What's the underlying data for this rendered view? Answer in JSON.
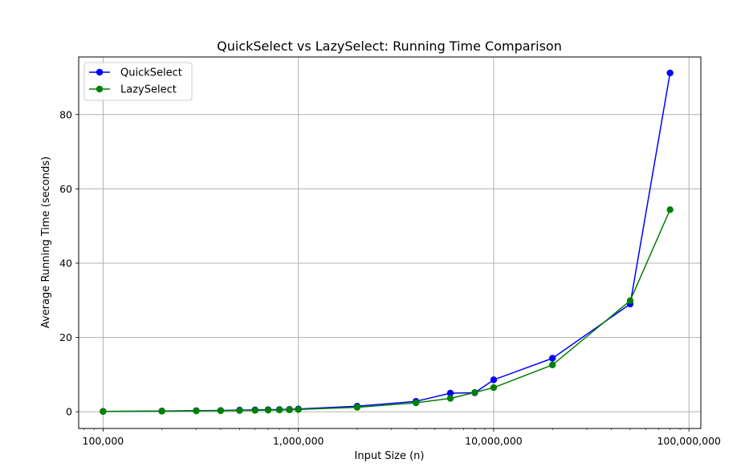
{
  "chart_data": {
    "type": "line",
    "title": "QuickSelect vs LazySelect: Running Time Comparison",
    "xlabel": "Input Size (n)",
    "ylabel": "Average Running Time (seconds)",
    "x_scale": "log",
    "xlim": [
      75000,
      115000000
    ],
    "ylim": [
      -4.5,
      95.5
    ],
    "x_ticks": [
      100000,
      1000000,
      10000000,
      100000000
    ],
    "x_tick_labels": [
      "100,000",
      "1,000,000",
      "10,000,000",
      "100,000,000"
    ],
    "y_ticks": [
      0,
      20,
      40,
      60,
      80
    ],
    "y_tick_labels": [
      "0",
      "20",
      "40",
      "60",
      "80"
    ],
    "grid": true,
    "legend_position": "top-left",
    "x": [
      100000,
      200000,
      300000,
      400000,
      500000,
      600000,
      700000,
      800000,
      900000,
      1000000,
      2000000,
      4000000,
      6000000,
      8000000,
      10000000,
      20000000,
      50000000,
      80000000
    ],
    "series": [
      {
        "name": "QuickSelect",
        "color": "#0000ff",
        "values": [
          0.1,
          0.2,
          0.3,
          0.35,
          0.45,
          0.5,
          0.55,
          0.6,
          0.65,
          0.75,
          1.5,
          2.8,
          5.0,
          5.1,
          8.6,
          14.4,
          29.0,
          91.2
        ]
      },
      {
        "name": "LazySelect",
        "color": "#008000",
        "values": [
          0.08,
          0.15,
          0.22,
          0.28,
          0.33,
          0.38,
          0.43,
          0.48,
          0.52,
          0.6,
          1.2,
          2.4,
          3.6,
          5.2,
          6.5,
          12.6,
          29.9,
          54.4
        ]
      }
    ]
  }
}
